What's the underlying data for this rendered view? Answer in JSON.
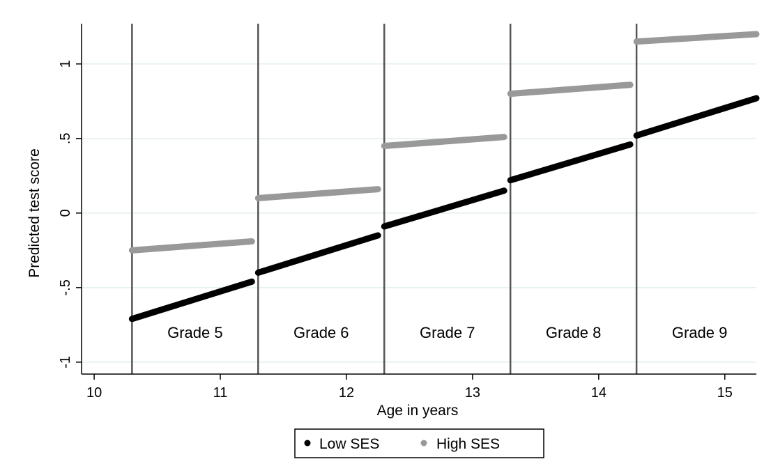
{
  "chart_data": {
    "type": "scatter",
    "title": "",
    "xlabel": "Age in years",
    "ylabel": "Predicted test score",
    "xlim": [
      9.9,
      15.25
    ],
    "ylim": [
      -1.08,
      1.27
    ],
    "x_ticks": [
      10,
      11,
      12,
      13,
      14,
      15
    ],
    "x_tick_labels": [
      "10",
      "11",
      "12",
      "13",
      "14",
      "15"
    ],
    "y_ticks": [
      -1,
      -0.5,
      0,
      0.5,
      1
    ],
    "y_tick_labels": [
      "-1",
      "-.5",
      "0",
      ".5",
      "1"
    ],
    "grid": true,
    "grade_boundaries": [
      10.3,
      11.3,
      12.3,
      13.3,
      14.3
    ],
    "grade_labels": [
      {
        "text": "Grade 5",
        "x": 10.8,
        "y": -0.8
      },
      {
        "text": "Grade 6",
        "x": 11.8,
        "y": -0.8
      },
      {
        "text": "Grade 7",
        "x": 12.8,
        "y": -0.8
      },
      {
        "text": "Grade 8",
        "x": 13.8,
        "y": -0.8
      },
      {
        "text": "Grade 9",
        "x": 14.8,
        "y": -0.8
      }
    ],
    "legend": {
      "placement": "bottom",
      "entries": [
        "Low SES",
        "High SES"
      ]
    },
    "series": [
      {
        "name": "Low SES",
        "color": "#000000",
        "segments": [
          {
            "x": [
              10.3,
              11.25
            ],
            "y": [
              -0.71,
              -0.46
            ]
          },
          {
            "x": [
              11.3,
              12.25
            ],
            "y": [
              -0.4,
              -0.15
            ]
          },
          {
            "x": [
              12.3,
              13.25
            ],
            "y": [
              -0.09,
              0.15
            ]
          },
          {
            "x": [
              13.3,
              14.25
            ],
            "y": [
              0.22,
              0.46
            ]
          },
          {
            "x": [
              14.3,
              15.25
            ],
            "y": [
              0.52,
              0.77
            ]
          }
        ]
      },
      {
        "name": "High SES",
        "color": "#999999",
        "segments": [
          {
            "x": [
              10.3,
              11.25
            ],
            "y": [
              -0.25,
              -0.19
            ]
          },
          {
            "x": [
              11.3,
              12.25
            ],
            "y": [
              0.1,
              0.16
            ]
          },
          {
            "x": [
              12.3,
              13.25
            ],
            "y": [
              0.45,
              0.51
            ]
          },
          {
            "x": [
              13.3,
              14.25
            ],
            "y": [
              0.8,
              0.86
            ]
          },
          {
            "x": [
              14.3,
              15.25
            ],
            "y": [
              1.15,
              1.2
            ]
          }
        ]
      }
    ]
  }
}
